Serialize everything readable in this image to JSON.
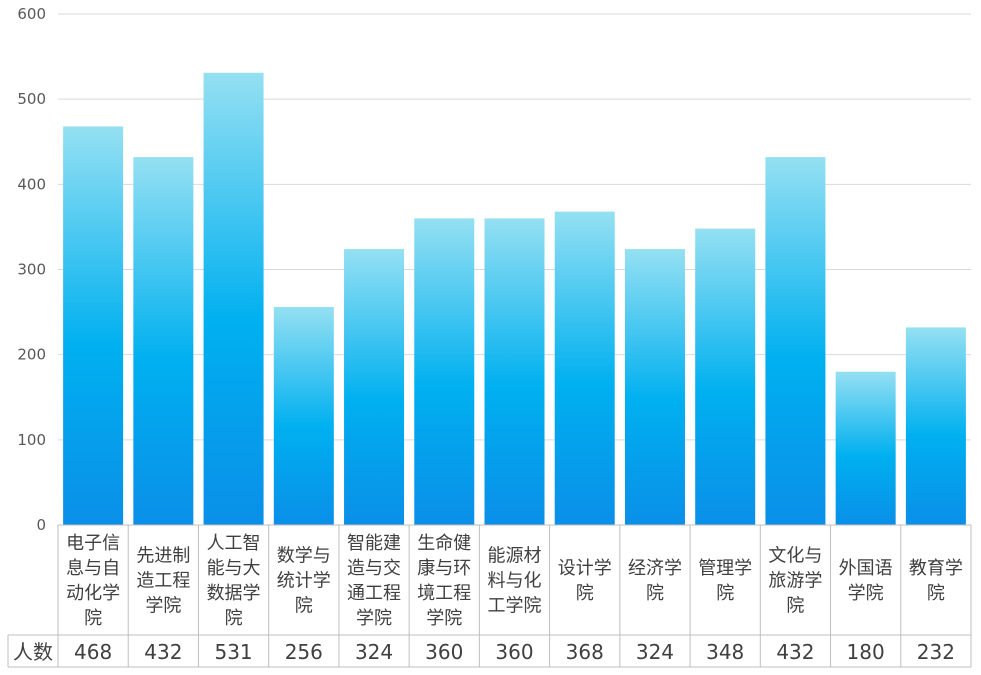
{
  "chart_data": {
    "type": "bar",
    "title": "",
    "xlabel": "",
    "ylabel": "",
    "ylim": [
      0,
      600
    ],
    "yticks": [
      "0",
      "100",
      "200",
      "300",
      "400",
      "500",
      "600"
    ],
    "grid": true,
    "legend": "none",
    "categories": [
      "电子信息与自动化学院",
      "先进制造工程学院",
      "人工智能与大数据学院",
      "数学与统计学院",
      "智能建造与交通工程学院",
      "生命健康与环境工程学院",
      "能源材料与化工学院",
      "设计学院",
      "经济学院",
      "管理学院",
      "文化与旅游学院",
      "外国语学院",
      "教育学院"
    ],
    "category_lines": [
      [
        "电子信",
        "息与自",
        "动化学",
        "院"
      ],
      [
        "先进制",
        "造工程",
        "学院"
      ],
      [
        "人工智",
        "能与大",
        "数据学",
        "院"
      ],
      [
        "数学与",
        "统计学",
        "院"
      ],
      [
        "智能建",
        "造与交",
        "通工程",
        "学院"
      ],
      [
        "生命健",
        "康与环",
        "境工程",
        "学院"
      ],
      [
        "能源材",
        "料与化",
        "工学院"
      ],
      [
        "设计学",
        "院"
      ],
      [
        "经济学",
        "院"
      ],
      [
        "管理学",
        "院"
      ],
      [
        "文化与",
        "旅游学",
        "院"
      ],
      [
        "外国语",
        "学院"
      ],
      [
        "教育学",
        "院"
      ]
    ],
    "series": [
      {
        "name": "人数",
        "values": [
          468,
          432,
          531,
          256,
          324,
          360,
          360,
          368,
          324,
          348,
          432,
          180,
          232
        ]
      }
    ],
    "data_table": true,
    "colors": {
      "bar_top": "#95e0f2",
      "bar_mid": "#00b0f0",
      "bar_bottom": "#0a8fe8",
      "grid": "#d9d9d9",
      "table_border": "#bfbfbf"
    }
  }
}
